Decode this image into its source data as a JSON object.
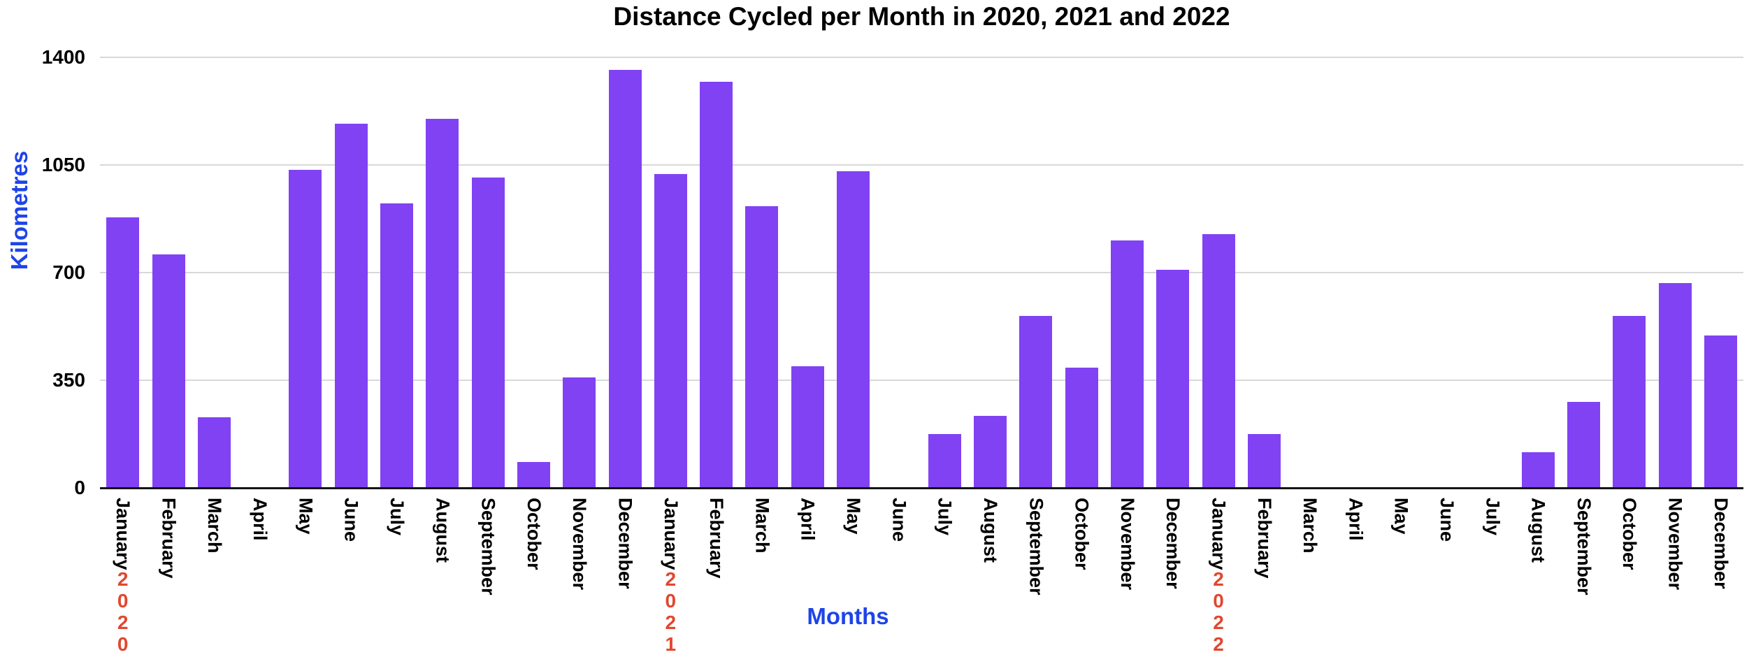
{
  "title": "Distance Cycled per Month in 2020, 2021 and 2022",
  "y_axis": {
    "title": "Kilometres"
  },
  "x_axis": {
    "title": "Months"
  },
  "colors": {
    "bar": "#8142f3",
    "year_label": "#e1472f",
    "axis_title": "#1e44e8",
    "gridline": "#d8d8d8",
    "baseline": "#141414",
    "text": "#000000",
    "background": "#ffffff"
  },
  "chart_data": {
    "type": "bar",
    "title": "Distance Cycled per Month in 2020, 2021 and 2022",
    "xlabel": "Months",
    "ylabel": "Kilometres",
    "ylim": [
      0,
      1400
    ],
    "yticks": [
      0,
      350,
      700,
      1050,
      1400
    ],
    "grid": "horizontal",
    "legend": "none",
    "categories": [
      "January",
      "February",
      "March",
      "April",
      "May",
      "June",
      "July",
      "August",
      "September",
      "October",
      "November",
      "December",
      "January",
      "February",
      "March",
      "April",
      "May",
      "June",
      "July",
      "August",
      "September",
      "October",
      "November",
      "December",
      "January",
      "February",
      "March",
      "April",
      "May",
      "June",
      "July",
      "August",
      "September",
      "October",
      "November",
      "December"
    ],
    "values": [
      880,
      760,
      230,
      0,
      1035,
      1185,
      925,
      1200,
      1010,
      85,
      360,
      1360,
      1020,
      1320,
      915,
      395,
      1030,
      0,
      175,
      235,
      560,
      390,
      805,
      710,
      825,
      175,
      0,
      0,
      0,
      0,
      0,
      115,
      280,
      560,
      665,
      495
    ],
    "year_markers": [
      {
        "label": "2020",
        "month_index": 0
      },
      {
        "label": "2021",
        "month_index": 12
      },
      {
        "label": "2022",
        "month_index": 24
      }
    ]
  }
}
